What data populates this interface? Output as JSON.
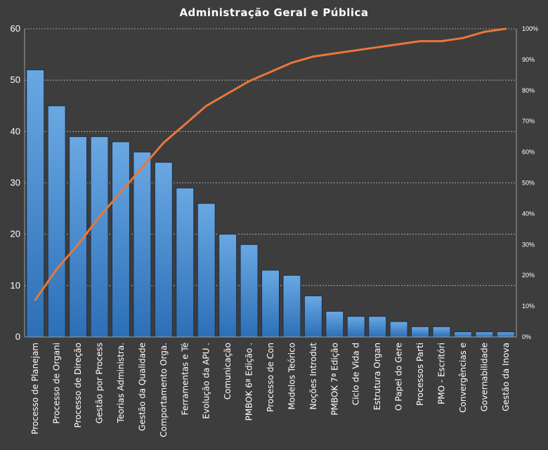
{
  "chart_data": {
    "type": "bar",
    "title": "Administração  Geral  e Pública",
    "categories": [
      "Processo de Planejam",
      "Processo de Organi",
      "Processo de Direção",
      "Gestão por Process",
      "Teorias Administra.",
      "Gestão da Qualidade",
      "Comportamento  Orga.",
      "Ferramentas e Té",
      "Evolução da APU .",
      "Comunicação",
      "PMBOK 6ª Edição .",
      "Processo de Con",
      "Modelos Teórico",
      "Noções Introdut",
      "PMBOK 7ª Edição",
      "Ciclo de Vida d",
      "Estrutura Organ",
      "O Papel do Gere",
      "Processos Parti",
      "PMO - Escritóri",
      "Convergências e",
      "Governabilidade",
      "Gestão da Inova"
    ],
    "series": [
      {
        "type": "bar",
        "values": [
          52,
          45,
          39,
          39,
          38,
          36,
          34,
          29,
          26,
          20,
          18,
          13,
          12,
          8,
          5,
          4,
          4,
          3,
          2,
          2,
          1,
          1,
          1
        ]
      },
      {
        "type": "line",
        "axis": "right",
        "values": [
          12,
          22,
          30,
          39,
          47,
          55,
          63,
          69,
          75,
          79,
          83,
          86,
          89,
          91,
          92,
          93,
          94,
          95,
          96,
          96,
          97,
          99,
          100
        ]
      }
    ],
    "yticks_left": [
      "0",
      "10",
      "20",
      "30",
      "40",
      "50",
      "60"
    ],
    "ylim_left": [
      0,
      60
    ],
    "yticks_right": [
      "0%",
      "10%",
      "20%",
      "30%",
      "40%",
      "50%",
      "60%",
      "70%",
      "80%",
      "90%",
      "100%"
    ],
    "ylim_right": [
      0,
      100
    ],
    "grid": true,
    "colors": {
      "bar_top": "#6aa8e3",
      "bar_bottom": "#2c6fb6",
      "line": "#e8773a",
      "background": "#3d3d3d"
    }
  }
}
